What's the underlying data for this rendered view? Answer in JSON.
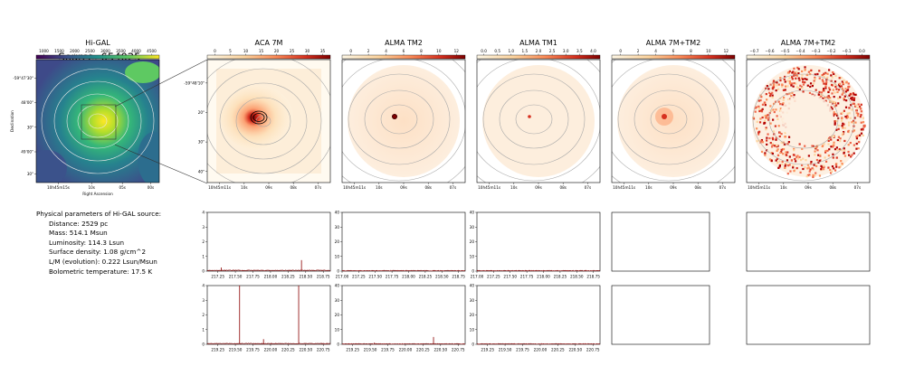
{
  "figure_title": "Source: 654025",
  "colors": {
    "viridis": [
      "#440154",
      "#3b528b",
      "#21918c",
      "#5ec962",
      "#fde725"
    ],
    "ylorrd": [
      "#fff8e6",
      "#fdd49e",
      "#fc8d59",
      "#d7301f",
      "#7f0000"
    ],
    "spectrum_line": "#8b0000",
    "contour": "#b0b0b0"
  },
  "map_panels": [
    {
      "title": "Hi-GAL",
      "cbar_ticks": [
        "1000",
        "1500",
        "2000",
        "2500",
        "3000",
        "3500",
        "4000",
        "4500"
      ],
      "yticks": [
        "-59°47'30\"",
        "48'00\"",
        "30\"",
        "49'00\"",
        "30\""
      ],
      "xticks": [
        "10h45m15s",
        "10s",
        "05s",
        "00s"
      ],
      "xlabel": "Right Ascension",
      "ylabel": "Declination",
      "colormap": "viridis"
    },
    {
      "title": "ACA 7M",
      "cbar_ticks": [
        "0",
        "5",
        "10",
        "15",
        "20",
        "25",
        "30",
        "35"
      ],
      "yticks": [
        "-59°48'10\"",
        "20\"",
        "30\"",
        "40\""
      ],
      "xticks": [
        "10h45m11s",
        "10s",
        "09s",
        "08s",
        "07s"
      ],
      "colormap": "ylorrd"
    },
    {
      "title": "ALMA TM2",
      "cbar_ticks": [
        "0",
        "2",
        "4",
        "6",
        "8",
        "10",
        "12"
      ],
      "xticks": [
        "10h45m11s",
        "10s",
        "09s",
        "08s",
        "07s"
      ],
      "colormap": "ylorrd"
    },
    {
      "title": "ALMA TM1",
      "cbar_ticks": [
        "0.0",
        "0.5",
        "1.0",
        "1.5",
        "2.0",
        "2.5",
        "3.0",
        "3.5",
        "4.0"
      ],
      "xticks": [
        "10h45m11s",
        "10s",
        "09s",
        "08s",
        "07s"
      ],
      "colormap": "ylorrd"
    },
    {
      "title": "ALMA 7M+TM2",
      "cbar_ticks": [
        "0",
        "2",
        "4",
        "6",
        "8",
        "10",
        "12"
      ],
      "xticks": [
        "10h45m11s",
        "10s",
        "09s",
        "08s",
        "07s"
      ],
      "colormap": "ylorrd"
    },
    {
      "title": "ALMA 7M+TM2",
      "cbar_ticks": [
        "−0.7",
        "−0.6",
        "−0.5",
        "−0.4",
        "−0.3",
        "−0.2",
        "−0.1",
        "0.0"
      ],
      "xticks": [
        "10h45m11s",
        "10s",
        "09s",
        "08s",
        "07s"
      ],
      "colormap": "ylorrd"
    }
  ],
  "params": {
    "heading": "Physical parameters of Hi-GAL source:",
    "lines": [
      "Distance: 2529 pc",
      "Mass: 514.1 Msun",
      "Luminosity: 114.3 Lsun",
      "Surface density: 1.08 g/cm^2",
      "L/M (evolution): 0.222 Lsun/Msun",
      "Bolometric temperature: 17.5 K"
    ]
  },
  "chart_data": [
    {
      "type": "line",
      "panel": "ACA 7M spectrum (row 1)",
      "xlim": [
        217.1,
        218.85
      ],
      "ylim": [
        0,
        4
      ],
      "xticks": [
        "217.25",
        "217.50",
        "217.75",
        "218.00",
        "218.25",
        "218.50",
        "218.75"
      ],
      "yticks": [
        "0",
        "1",
        "2",
        "3",
        "4"
      ],
      "baseline": 0.05,
      "lines": [
        {
          "x": 217.3,
          "y": 0.25
        },
        {
          "x": 218.44,
          "y": 0.75
        }
      ]
    },
    {
      "type": "line",
      "panel": "ALMA TM2 spectrum (row 1)",
      "xlim": [
        217.0,
        218.85
      ],
      "ylim": [
        0,
        40
      ],
      "xticks": [
        "217.00",
        "217.25",
        "217.50",
        "217.75",
        "218.00",
        "218.25",
        "218.50",
        "218.75"
      ],
      "yticks": [
        "0",
        "10",
        "20",
        "30",
        "40"
      ],
      "baseline": 0.3,
      "lines": []
    },
    {
      "type": "line",
      "panel": "ALMA TM1 spectrum (row 1)",
      "xlim": [
        217.0,
        218.85
      ],
      "ylim": [
        0,
        40
      ],
      "xticks": [
        "217.00",
        "217.25",
        "217.50",
        "217.75",
        "218.00",
        "218.25",
        "218.50",
        "218.75"
      ],
      "yticks": [
        "0",
        "10",
        "20",
        "30",
        "40"
      ],
      "baseline": 0.3,
      "lines": []
    },
    {
      "type": "line",
      "panel": "ACA 7M spectrum (row 2)",
      "xlim": [
        219.1,
        220.85
      ],
      "ylim": [
        0,
        4
      ],
      "xticks": [
        "219.25",
        "219.50",
        "219.75",
        "220.00",
        "220.25",
        "220.50",
        "220.75"
      ],
      "yticks": [
        "0",
        "1",
        "2",
        "3",
        "4"
      ],
      "baseline": 0.05,
      "lines": [
        {
          "x": 219.56,
          "y": 4.0
        },
        {
          "x": 219.9,
          "y": 0.35
        },
        {
          "x": 220.4,
          "y": 4.0
        }
      ]
    },
    {
      "type": "line",
      "panel": "ALMA TM2 spectrum (row 2)",
      "xlim": [
        219.1,
        220.85
      ],
      "ylim": [
        0,
        40
      ],
      "xticks": [
        "219.25",
        "219.50",
        "219.75",
        "220.00",
        "220.25",
        "220.50",
        "220.75"
      ],
      "yticks": [
        "0",
        "10",
        "20",
        "30",
        "40"
      ],
      "baseline": 0.3,
      "lines": [
        {
          "x": 219.56,
          "y": 1.2
        },
        {
          "x": 220.4,
          "y": 5.0
        }
      ]
    },
    {
      "type": "line",
      "panel": "ALMA TM1 spectrum (row 2)",
      "xlim": [
        219.1,
        220.85
      ],
      "ylim": [
        0,
        40
      ],
      "xticks": [
        "219.25",
        "219.50",
        "219.75",
        "220.00",
        "220.25",
        "220.50",
        "220.75"
      ],
      "yticks": [
        "0",
        "10",
        "20",
        "30",
        "40"
      ],
      "baseline": 0.3,
      "lines": []
    }
  ]
}
